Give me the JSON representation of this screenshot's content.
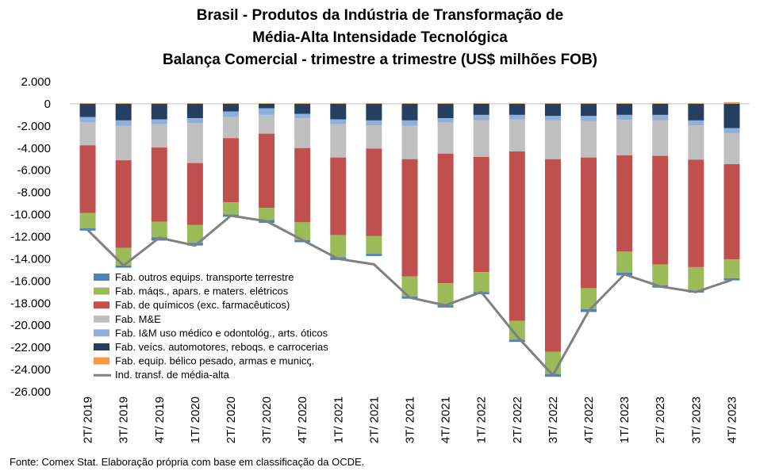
{
  "title_lines": [
    "Brasil - Produtos da Indústria de Transformação de",
    "Média-Alta Intensidade Tecnológica",
    "Balança Comercial - trimestre a trimestre (US$ milhões FOB)"
  ],
  "source": "Fonte: Comex Stat. Elaboração própria com base em classificação da OCDE.",
  "chart_data": {
    "type": "bar",
    "stacked": true,
    "title": "Brasil - Produtos da Indústria de Transformação de Média-Alta Intensidade Tecnológica Balança Comercial - trimestre a trimestre (US$ milhões FOB)",
    "xlabel": "",
    "ylabel": "",
    "ylim": [
      -26000,
      2000
    ],
    "yticks": [
      2000,
      0,
      -2000,
      -4000,
      -6000,
      -8000,
      -10000,
      -12000,
      -14000,
      -16000,
      -18000,
      -20000,
      -22000,
      -24000,
      -26000
    ],
    "ytick_labels": [
      "2.000",
      "0",
      "-2.000",
      "-4.000",
      "-6.000",
      "-8.000",
      "-10.000",
      "-12.000",
      "-14.000",
      "-16.000",
      "-18.000",
      "-20.000",
      "-22.000",
      "-24.000",
      "-26.000"
    ],
    "categories": [
      "2T/ 2019",
      "3T/ 2019",
      "4T/ 2019",
      "1T/ 2020",
      "2T/ 2020",
      "3T/ 2020",
      "4T/ 2020",
      "1T/ 2021",
      "2T/ 2021",
      "3T/ 2021",
      "4T/ 2021",
      "1T/ 2022",
      "2T/ 2022",
      "3T/ 2022",
      "4T/ 2022",
      "1T/ 2023",
      "2T/ 2023",
      "3T/ 2023",
      "4T/ 2023"
    ],
    "legend_position": "bottom-left",
    "grid": false,
    "series": [
      {
        "name": "Fab. equip. bélico pesado, armas e municꞔ.",
        "color": "#f59a42",
        "values": [
          50,
          50,
          50,
          50,
          50,
          50,
          50,
          50,
          50,
          50,
          50,
          50,
          50,
          50,
          50,
          50,
          50,
          50,
          150
        ]
      },
      {
        "name": "Fab. veícs. automotores, reboqs. e carrocerias",
        "color": "#243f60",
        "values": [
          -1200,
          -1500,
          -1400,
          -1300,
          -700,
          -400,
          -900,
          -1400,
          -1500,
          -1500,
          -1300,
          -1000,
          -1000,
          -1100,
          -1100,
          -1000,
          -1000,
          -1500,
          -2200
        ]
      },
      {
        "name": "Fab. I&M uso médico e odontológ., arts. óticos",
        "color": "#8eaedc",
        "values": [
          -450,
          -500,
          -450,
          -450,
          -500,
          -600,
          -400,
          -450,
          -450,
          -500,
          -400,
          -500,
          -400,
          -400,
          -450,
          -450,
          -500,
          -450,
          -450
        ]
      },
      {
        "name": "Fab. M&E",
        "color": "#bfbfbf",
        "values": [
          -2100,
          -3100,
          -2100,
          -3600,
          -1900,
          -1700,
          -2700,
          -3000,
          -2100,
          -3000,
          -2800,
          -3300,
          -2900,
          -3500,
          -3300,
          -3200,
          -3200,
          -3100,
          -2800
        ]
      },
      {
        "name": "Fab. de químicos (exc. farmacêuticos)",
        "color": "#c0504d",
        "values": [
          -6100,
          -7900,
          -6700,
          -5600,
          -5800,
          -6700,
          -6700,
          -7000,
          -7900,
          -10600,
          -11700,
          -10400,
          -15300,
          -17400,
          -11800,
          -8700,
          -9800,
          -9700,
          -8600
        ]
      },
      {
        "name": "Fab. máqs., apars. e maters. elétricos",
        "color": "#9bbb59",
        "values": [
          -1400,
          -1600,
          -1400,
          -1600,
          -1100,
          -1100,
          -1600,
          -2000,
          -1600,
          -1800,
          -2000,
          -1800,
          -1700,
          -2000,
          -1900,
          -1900,
          -1900,
          -2100,
          -1700
        ]
      },
      {
        "name": "Fab. outros equips. transporte terrestre",
        "color": "#4f81bd",
        "values": [
          -200,
          -200,
          -300,
          -250,
          -200,
          -250,
          -200,
          -250,
          -200,
          -200,
          -200,
          -200,
          -200,
          -250,
          -250,
          -250,
          -200,
          -200,
          -200
        ]
      }
    ],
    "line": {
      "name": "Ind. transf. de média-alta",
      "color": "#808080",
      "values": [
        -11400,
        -14600,
        -12100,
        -12800,
        -10100,
        -10600,
        -12300,
        -14000,
        -14500,
        -17500,
        -18200,
        -17000,
        -21000,
        -24500,
        -18700,
        -15400,
        -16500,
        -17000,
        -15900
      ]
    }
  }
}
